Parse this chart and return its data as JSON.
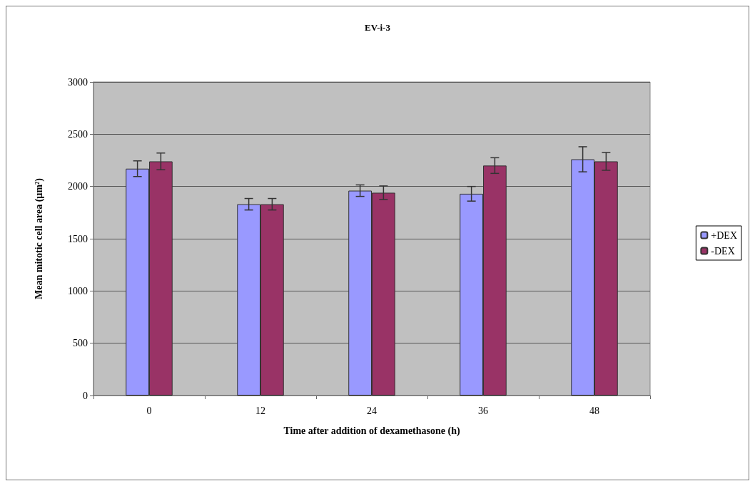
{
  "chart_data": {
    "type": "bar",
    "title": "EV-i-3",
    "xlabel": "Time after addition of dexamethasone (h)",
    "ylabel": "Mean mitotic cell area (µm²)",
    "categories": [
      "0",
      "12",
      "24",
      "36",
      "48"
    ],
    "series": [
      {
        "name": "+DEX",
        "color": "#9999ff",
        "values": [
          2170,
          1830,
          1960,
          1930,
          2260
        ],
        "errors": [
          75,
          55,
          55,
          70,
          120
        ]
      },
      {
        "name": "-DEX",
        "color": "#993366",
        "values": [
          2240,
          1830,
          1940,
          2200,
          2240
        ],
        "errors": [
          80,
          55,
          65,
          75,
          85
        ]
      }
    ],
    "ylim": [
      0,
      3000
    ],
    "yticks": [
      0,
      500,
      1000,
      1500,
      2000,
      2500,
      3000
    ],
    "grid": "y",
    "legend": "right"
  }
}
